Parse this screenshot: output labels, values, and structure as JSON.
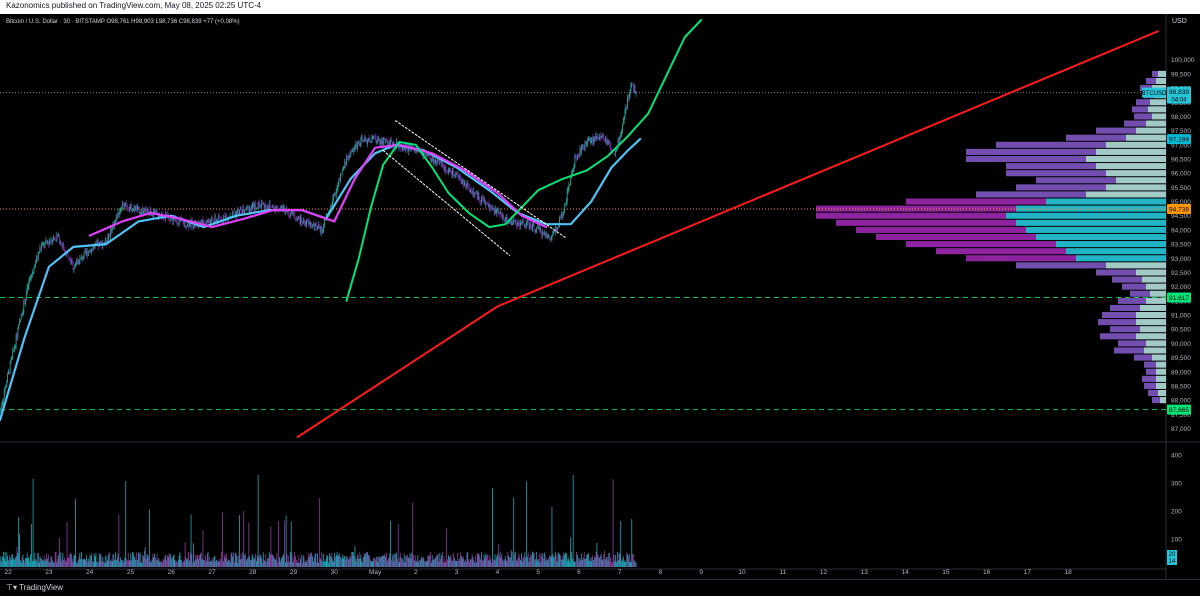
{
  "header": {
    "published": "Kazonomics published on TradingView.com, May 08, 2025 02:25 UTC-4"
  },
  "footer": {
    "brand": "TradingView"
  },
  "chart_data": {
    "type": "candlestick",
    "symbol_line": {
      "name": "Bitcoin / U.S. Dollar · 30 · BITSTAMP",
      "ohlc": "O98,761 H98,903 L98,736 C98,839 +77 (+0.08%)"
    },
    "currency": "USD",
    "ylim": [
      86700,
      101400
    ],
    "y_ticks": [
      "100,000",
      "99,500",
      "99,000",
      "98,500",
      "98,000",
      "97,500",
      "97,000",
      "96,500",
      "96,000",
      "95,500",
      "95,000",
      "94,500",
      "94,000",
      "93,500",
      "93,000",
      "92,500",
      "92,000",
      "91,500",
      "91,000",
      "90,500",
      "90,000",
      "89,500",
      "89,000",
      "88,500",
      "88,000",
      "87,500",
      "87,000"
    ],
    "x_ticks": [
      "22",
      "23",
      "24",
      "25",
      "26",
      "27",
      "28",
      "29",
      "30",
      "May",
      "2",
      "3",
      "4",
      "5",
      "6",
      "7",
      "8",
      "9",
      "10",
      "11",
      "12",
      "13",
      "14",
      "15",
      "16",
      "17",
      "18"
    ],
    "xlim_days": [
      -8.2,
      20.4
    ],
    "price_candles_anchors": [
      [
        -8.2,
        87600
      ],
      [
        -8.0,
        88900
      ],
      [
        -7.8,
        90200
      ],
      [
        -7.5,
        92100
      ],
      [
        -7.2,
        93400
      ],
      [
        -6.8,
        93800
      ],
      [
        -6.4,
        92700
      ],
      [
        -6.0,
        93300
      ],
      [
        -5.6,
        93600
      ],
      [
        -5.2,
        94900
      ],
      [
        -4.8,
        94700
      ],
      [
        -4.2,
        94500
      ],
      [
        -3.6,
        94200
      ],
      [
        -3.0,
        94300
      ],
      [
        -2.4,
        94600
      ],
      [
        -1.8,
        94900
      ],
      [
        -1.2,
        94700
      ],
      [
        -0.8,
        94300
      ],
      [
        -0.6,
        94200
      ],
      [
        -0.3,
        94000
      ],
      [
        0.0,
        95200
      ],
      [
        0.3,
        96500
      ],
      [
        0.6,
        97100
      ],
      [
        1.0,
        97200
      ],
      [
        1.5,
        97000
      ],
      [
        2.0,
        96800
      ],
      [
        2.5,
        96400
      ],
      [
        3.0,
        95900
      ],
      [
        3.5,
        95200
      ],
      [
        3.9,
        94700
      ],
      [
        4.3,
        94300
      ],
      [
        4.7,
        94200
      ],
      [
        5.0,
        94000
      ],
      [
        5.3,
        93700
      ],
      [
        5.6,
        94500
      ],
      [
        5.9,
        96500
      ],
      [
        6.2,
        97100
      ],
      [
        6.6,
        97300
      ],
      [
        6.85,
        96700
      ],
      [
        7.0,
        97200
      ],
      [
        7.15,
        98300
      ],
      [
        7.3,
        99200
      ],
      [
        7.4,
        98839
      ]
    ],
    "current_price": "98,839",
    "current_price_symbol": "BTCUSD",
    "countdown": "04:04",
    "price_labels": [
      {
        "value": 97199,
        "text": "97,199",
        "color": "#00bcd4"
      },
      {
        "value": 94738,
        "text": "94,738",
        "color": "#ff9800"
      },
      {
        "value": 91617,
        "text": "91,617",
        "color": "#00e676"
      },
      {
        "value": 87665,
        "text": "87,665",
        "color": "#00e676"
      }
    ],
    "horizontal_lines": [
      {
        "value": 98839,
        "color": "#787b86",
        "style": "dotted"
      },
      {
        "value": 94738,
        "color": "#ff9800",
        "style": "dotted"
      },
      {
        "value": 91617,
        "color": "#00c853",
        "style": "dashed"
      },
      {
        "value": 87665,
        "color": "#00c853",
        "style": "dashed"
      }
    ],
    "trend_line_red": [
      [
        -0.9,
        86700
      ],
      [
        4.0,
        91300
      ],
      [
        20.2,
        101000
      ]
    ],
    "channel_lines": [
      {
        "from": [
          1.5,
          97850
        ],
        "to": [
          5.7,
          93700
        ]
      },
      {
        "from": [
          1.2,
          96800
        ],
        "to": [
          4.3,
          93100
        ]
      }
    ],
    "sma_magenta": [
      [
        -6.0,
        93800
      ],
      [
        -5.2,
        94300
      ],
      [
        -4.5,
        94600
      ],
      [
        -3.8,
        94400
      ],
      [
        -3.0,
        94100
      ],
      [
        -2.2,
        94400
      ],
      [
        -1.5,
        94700
      ],
      [
        -0.8,
        94700
      ],
      [
        0.0,
        94300
      ],
      [
        0.5,
        95800
      ],
      [
        1.0,
        96900
      ],
      [
        1.6,
        97000
      ],
      [
        2.4,
        96700
      ],
      [
        3.2,
        96100
      ],
      [
        4.0,
        95300
      ],
      [
        4.6,
        94500
      ],
      [
        5.2,
        94100
      ]
    ],
    "ma_cyan": [
      [
        -8.2,
        87300
      ],
      [
        -7.6,
        90200
      ],
      [
        -7.0,
        92700
      ],
      [
        -6.4,
        93400
      ],
      [
        -5.6,
        93500
      ],
      [
        -4.8,
        94300
      ],
      [
        -4.0,
        94500
      ],
      [
        -3.2,
        94100
      ],
      [
        -2.4,
        94500
      ],
      [
        -1.6,
        94700
      ],
      [
        -0.8,
        94700
      ],
      [
        -0.2,
        94400
      ],
      [
        0.4,
        95800
      ],
      [
        1.0,
        96700
      ],
      [
        1.5,
        97000
      ],
      [
        2.2,
        96800
      ],
      [
        3.0,
        96200
      ],
      [
        3.8,
        95400
      ],
      [
        4.5,
        94600
      ],
      [
        5.2,
        94200
      ],
      [
        5.8,
        94200
      ],
      [
        6.3,
        95000
      ],
      [
        6.8,
        96200
      ],
      [
        7.2,
        96800
      ],
      [
        7.5,
        97200
      ]
    ],
    "curve_green": [
      [
        0.3,
        91500
      ],
      [
        0.6,
        93000
      ],
      [
        0.9,
        94800
      ],
      [
        1.2,
        96300
      ],
      [
        1.6,
        97100
      ],
      [
        2.0,
        97000
      ],
      [
        2.4,
        96200
      ],
      [
        2.8,
        95300
      ],
      [
        3.3,
        94600
      ],
      [
        3.8,
        94100
      ],
      [
        4.2,
        94200
      ],
      [
        4.6,
        94800
      ],
      [
        5.0,
        95400
      ],
      [
        5.6,
        95800
      ],
      [
        6.2,
        96100
      ],
      [
        6.7,
        96600
      ],
      [
        7.2,
        97300
      ],
      [
        7.7,
        98100
      ],
      [
        8.1,
        99300
      ],
      [
        8.6,
        100800
      ],
      [
        9.0,
        101400
      ]
    ],
    "volume": {
      "y_ticks": [
        "400",
        "300",
        "200",
        "100"
      ],
      "ylim": [
        0,
        440
      ],
      "badge_values": [
        "20",
        "14"
      ]
    },
    "volume_profile_levels": [
      {
        "price": 99500,
        "a": 6,
        "b": 8
      },
      {
        "price": 99250,
        "a": 10,
        "b": 10
      },
      {
        "price": 99000,
        "a": 12,
        "b": 14
      },
      {
        "price": 98750,
        "a": 10,
        "b": 12
      },
      {
        "price": 98500,
        "a": 14,
        "b": 16
      },
      {
        "price": 98250,
        "a": 16,
        "b": 18
      },
      {
        "price": 98000,
        "a": 18,
        "b": 14
      },
      {
        "price": 97750,
        "a": 22,
        "b": 20
      },
      {
        "price": 97500,
        "a": 40,
        "b": 30
      },
      {
        "price": 97250,
        "a": 60,
        "b": 40
      },
      {
        "price": 97000,
        "a": 110,
        "b": 60
      },
      {
        "price": 96750,
        "a": 130,
        "b": 70
      },
      {
        "price": 96500,
        "a": 120,
        "b": 80
      },
      {
        "price": 96250,
        "a": 90,
        "b": 70
      },
      {
        "price": 96000,
        "a": 100,
        "b": 60
      },
      {
        "price": 95750,
        "a": 80,
        "b": 50
      },
      {
        "price": 95500,
        "a": 90,
        "b": 60
      },
      {
        "price": 95250,
        "a": 110,
        "b": 80
      },
      {
        "price": 95000,
        "a": 140,
        "b": 120
      },
      {
        "price": 94750,
        "a": 200,
        "b": 150
      },
      {
        "price": 94500,
        "a": 190,
        "b": 160
      },
      {
        "price": 94250,
        "a": 180,
        "b": 150
      },
      {
        "price": 94000,
        "a": 170,
        "b": 140
      },
      {
        "price": 93750,
        "a": 160,
        "b": 130
      },
      {
        "price": 93500,
        "a": 150,
        "b": 110
      },
      {
        "price": 93250,
        "a": 130,
        "b": 100
      },
      {
        "price": 93000,
        "a": 110,
        "b": 90
      },
      {
        "price": 92750,
        "a": 90,
        "b": 60
      },
      {
        "price": 92500,
        "a": 40,
        "b": 30
      },
      {
        "price": 92250,
        "a": 30,
        "b": 24
      },
      {
        "price": 92000,
        "a": 24,
        "b": 20
      },
      {
        "price": 91750,
        "a": 20,
        "b": 16
      },
      {
        "price": 91500,
        "a": 28,
        "b": 20
      },
      {
        "price": 91250,
        "a": 30,
        "b": 26
      },
      {
        "price": 91000,
        "a": 34,
        "b": 30
      },
      {
        "price": 90750,
        "a": 38,
        "b": 30
      },
      {
        "price": 90500,
        "a": 30,
        "b": 26
      },
      {
        "price": 90250,
        "a": 36,
        "b": 30
      },
      {
        "price": 90000,
        "a": 28,
        "b": 20
      },
      {
        "price": 89750,
        "a": 30,
        "b": 22
      },
      {
        "price": 89500,
        "a": 18,
        "b": 14
      },
      {
        "price": 89250,
        "a": 12,
        "b": 10
      },
      {
        "price": 89000,
        "a": 10,
        "b": 10
      },
      {
        "price": 88750,
        "a": 14,
        "b": 10
      },
      {
        "price": 88500,
        "a": 12,
        "b": 10
      },
      {
        "price": 88250,
        "a": 10,
        "b": 8
      },
      {
        "price": 88000,
        "a": 8,
        "b": 6
      }
    ]
  },
  "colors": {
    "bg": "#000000",
    "grid": "#1a1a1a",
    "up": "#26a69a",
    "down": "#7b1fa2",
    "red": "#ff1a1a",
    "green": "#00e676",
    "cyan": "#4fc3f7",
    "magenta": "#e040fb",
    "profile_dark": "#7e57c2",
    "profile_light": "#b2dfdb",
    "profile_poc_a": "#9c27b0",
    "profile_poc_b": "#26c6da"
  }
}
